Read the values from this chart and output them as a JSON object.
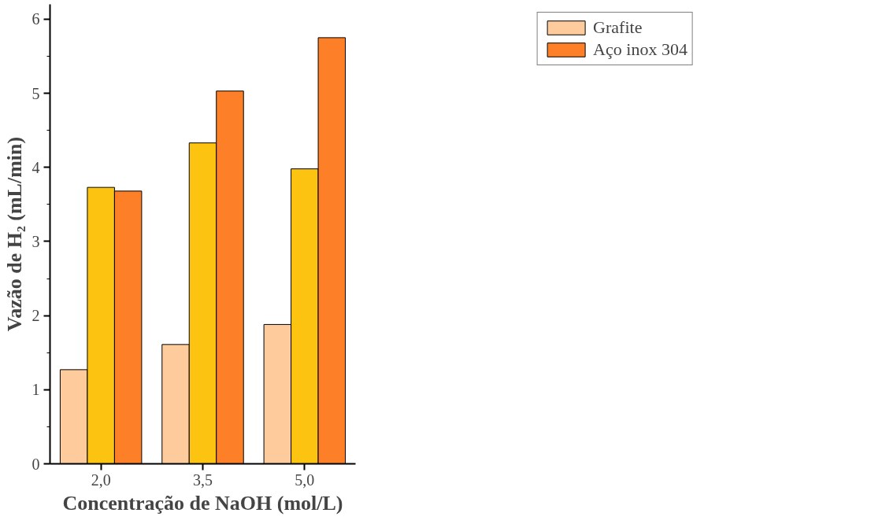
{
  "chart_data": {
    "type": "bar",
    "xlabel": "Concentração de NaOH (mol/L)",
    "ylabel": "Vazão de H₂ (mL/min)",
    "categories": [
      "2,0",
      "3,5",
      "5,0"
    ],
    "series": [
      {
        "name": "Grafite",
        "color": "#fecc9c",
        "values": [
          1.27,
          1.61,
          1.88
        ]
      },
      {
        "color": "#fcc411",
        "values": [
          3.73,
          4.33,
          3.98
        ]
      },
      {
        "name": "Aço inox 304",
        "color": "#fd7f28",
        "values": [
          3.68,
          5.03,
          5.75
        ]
      }
    ],
    "ylim": [
      0,
      6.2
    ],
    "yticks": [
      0,
      1,
      2,
      3,
      4,
      5,
      6
    ],
    "grid": false,
    "legend": "top right"
  }
}
